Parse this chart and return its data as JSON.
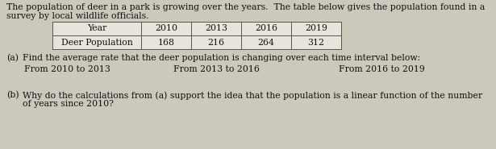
{
  "intro_line1": "The population of deer in a park is growing over the years.  The table below gives the population found in a",
  "intro_line2": "survey by local wildlife officials.",
  "table_headers": [
    "Year",
    "2010",
    "2013",
    "2016",
    "2019"
  ],
  "table_row": [
    "Deer Population",
    "168",
    "216",
    "264",
    "312"
  ],
  "part_a_label": "(a)",
  "part_a_text": "Find the average rate that the deer population is changing over each time interval below:",
  "interval1": "From 2010 to 2013",
  "interval2": "From 2013 to 2016",
  "interval3": "From 2016 to 2019",
  "part_b_label": "(b)",
  "part_b_line1": "Why do the calculations from (a) support the idea that the population is a linear function of the number",
  "part_b_line2": "of years since 2010?",
  "bg_color": "#ccc8bc",
  "text_color": "#111111",
  "font_size": 7.8
}
